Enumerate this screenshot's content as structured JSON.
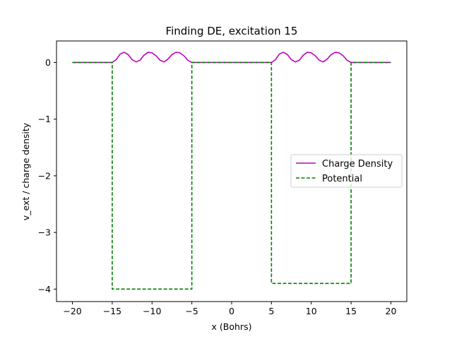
{
  "chart_data": {
    "type": "line",
    "title": "Finding DE, excitation 15",
    "xlabel": "x (Bohrs)",
    "ylabel": "v_ext / charge density",
    "xlim": [
      -22,
      22
    ],
    "ylim": [
      -4.22,
      0.38
    ],
    "xticks": [
      -20,
      -15,
      -10,
      -5,
      0,
      5,
      10,
      15,
      20
    ],
    "xtick_labels": [
      "−20",
      "−15",
      "−10",
      "−5",
      "0",
      "5",
      "10",
      "15",
      "20"
    ],
    "yticks": [
      0,
      -1,
      -2,
      -3,
      -4
    ],
    "ytick_labels": [
      "0",
      "−1",
      "−2",
      "−3",
      "−4"
    ],
    "grid": false,
    "legend": {
      "placement": "center-right",
      "entries": [
        "Charge Density",
        "Potential"
      ]
    },
    "series": [
      {
        "name": "Charge Density",
        "color": "#bf00bf",
        "style": "solid",
        "description": "Zero outside the wells; inside each well (x from -15 to -5 and 5 to 15) it oscillates between 0 and about 0.18 with three humps.",
        "points": [
          [
            -20,
            0
          ],
          [
            -15,
            0
          ],
          [
            -14.5,
            0.05
          ],
          [
            -14,
            0.15
          ],
          [
            -13.5,
            0.18
          ],
          [
            -13,
            0.14
          ],
          [
            -12.5,
            0.05
          ],
          [
            -12,
            0.01
          ],
          [
            -11.5,
            0.04
          ],
          [
            -11,
            0.13
          ],
          [
            -10.5,
            0.18
          ],
          [
            -10,
            0.17
          ],
          [
            -9.5,
            0.12
          ],
          [
            -9,
            0.04
          ],
          [
            -8.5,
            0.01
          ],
          [
            -8,
            0.06
          ],
          [
            -7.5,
            0.14
          ],
          [
            -7,
            0.18
          ],
          [
            -6.5,
            0.17
          ],
          [
            -6,
            0.12
          ],
          [
            -5.5,
            0.04
          ],
          [
            -5,
            0
          ],
          [
            5,
            0
          ],
          [
            5.5,
            0.05
          ],
          [
            6,
            0.15
          ],
          [
            6.5,
            0.18
          ],
          [
            7,
            0.14
          ],
          [
            7.5,
            0.05
          ],
          [
            8,
            0.01
          ],
          [
            8.5,
            0.04
          ],
          [
            9,
            0.13
          ],
          [
            9.5,
            0.18
          ],
          [
            10,
            0.17
          ],
          [
            10.5,
            0.12
          ],
          [
            11,
            0.04
          ],
          [
            11.5,
            0.01
          ],
          [
            12,
            0.06
          ],
          [
            12.5,
            0.14
          ],
          [
            13,
            0.18
          ],
          [
            13.5,
            0.17
          ],
          [
            14,
            0.12
          ],
          [
            14.5,
            0.04
          ],
          [
            15,
            0
          ],
          [
            20,
            0
          ]
        ]
      },
      {
        "name": "Potential",
        "color": "#008000",
        "style": "dashed",
        "description": "Two square wells: depth -4.0 between x=-15 and x=-5, depth -3.9 between x=5 and x=15; zero elsewhere.",
        "points": [
          [
            -20,
            0
          ],
          [
            -15,
            0
          ],
          [
            -15,
            -4.0
          ],
          [
            -5,
            -4.0
          ],
          [
            -5,
            0
          ],
          [
            5,
            0
          ],
          [
            5,
            -3.9
          ],
          [
            15,
            -3.9
          ],
          [
            15,
            0
          ],
          [
            20,
            0
          ]
        ]
      }
    ]
  }
}
